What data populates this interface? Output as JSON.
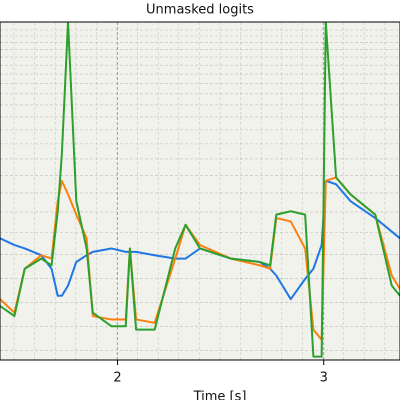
{
  "chart_data": {
    "type": "line",
    "title": "Unmasked logits",
    "x_label": "Time [s]",
    "x": [
      1.43,
      1.5,
      1.55,
      1.63,
      1.68,
      1.71,
      1.73,
      1.76,
      1.8,
      1.85,
      1.88,
      1.97,
      2.04,
      2.06,
      2.09,
      2.18,
      2.28,
      2.33,
      2.4,
      2.55,
      2.69,
      2.74,
      2.77,
      2.84,
      2.91,
      2.95,
      2.99,
      3.01,
      3.06,
      3.13,
      3.25,
      3.33,
      3.37
    ],
    "series": [
      {
        "color": "#1f77e4",
        "values": [
          0.36,
          0.34,
          0.33,
          0.31,
          0.27,
          0.19,
          0.19,
          0.22,
          0.29,
          0.31,
          0.32,
          0.33,
          0.32,
          0.32,
          0.32,
          0.31,
          0.3,
          0.3,
          0.33,
          0.3,
          0.29,
          0.27,
          0.25,
          0.18,
          0.24,
          0.27,
          0.34,
          0.53,
          0.52,
          0.47,
          0.42,
          0.38,
          0.36
        ]
      },
      {
        "color": "#ff7f0e",
        "values": [
          0.18,
          0.14,
          0.27,
          0.31,
          0.3,
          0.47,
          0.53,
          0.49,
          0.43,
          0.36,
          0.13,
          0.12,
          0.12,
          0.33,
          0.12,
          0.11,
          0.3,
          0.4,
          0.34,
          0.3,
          0.28,
          0.27,
          0.42,
          0.41,
          0.33,
          0.09,
          0.06,
          0.53,
          0.54,
          0.49,
          0.43,
          0.25,
          0.21
        ]
      },
      {
        "color": "#2ca02c",
        "values": [
          0.16,
          0.13,
          0.27,
          0.3,
          0.28,
          0.44,
          0.61,
          1.0,
          0.47,
          0.33,
          0.14,
          0.1,
          0.1,
          0.33,
          0.09,
          0.09,
          0.33,
          0.4,
          0.33,
          0.3,
          0.29,
          0.28,
          0.43,
          0.44,
          0.43,
          0.01,
          0.01,
          1.0,
          0.54,
          0.49,
          0.43,
          0.22,
          0.19
        ]
      }
    ],
    "xlim": [
      1.43,
      3.37
    ],
    "xticks": [
      2,
      3
    ],
    "ylim": [
      0,
      1
    ],
    "grid": true
  }
}
